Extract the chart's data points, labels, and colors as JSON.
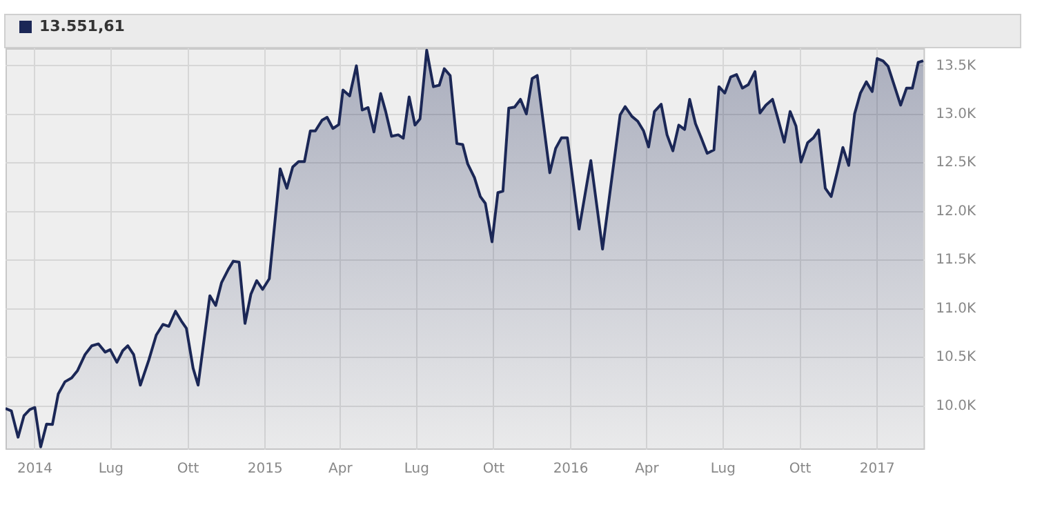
{
  "chart_data": {
    "type": "area",
    "legend": "top left",
    "grid": true,
    "marker": "none",
    "line_style": "solid",
    "xlim": [
      "2014-02-25",
      "2017-02-27"
    ],
    "ylim": [
      9550,
      13680
    ],
    "xticks": [
      {
        "value": "2014-04-01",
        "label": "2014"
      },
      {
        "value": "2014-07-01",
        "label": "Lug"
      },
      {
        "value": "2014-10-01",
        "label": "Ott"
      },
      {
        "value": "2015-01-01",
        "label": "2015"
      },
      {
        "value": "2015-04-01",
        "label": "Apr"
      },
      {
        "value": "2015-07-01",
        "label": "Lug"
      },
      {
        "value": "2015-10-01",
        "label": "Ott"
      },
      {
        "value": "2016-01-01",
        "label": "2016"
      },
      {
        "value": "2016-04-01",
        "label": "Apr"
      },
      {
        "value": "2016-07-01",
        "label": "Lug"
      },
      {
        "value": "2016-10-01",
        "label": "Ott"
      },
      {
        "value": "2017-01-01",
        "label": "2017"
      }
    ],
    "yticks": [
      {
        "value": 10000,
        "label": "10.0K"
      },
      {
        "value": 10500,
        "label": "10.5K"
      },
      {
        "value": 11000,
        "label": "11.0K"
      },
      {
        "value": 11500,
        "label": "11.5K"
      },
      {
        "value": 12000,
        "label": "12.0K"
      },
      {
        "value": 12500,
        "label": "12.5K"
      },
      {
        "value": 13000,
        "label": "13.0K"
      },
      {
        "value": 13500,
        "label": "13.5K"
      }
    ],
    "series": [
      {
        "name": "13.551,61",
        "color": "#1b2756",
        "x": [
          "2014-02-25",
          "2014-03-04",
          "2014-03-12",
          "2014-03-19",
          "2014-03-26",
          "2014-04-01",
          "2014-04-08",
          "2014-04-15",
          "2014-04-22",
          "2014-04-29",
          "2014-05-07",
          "2014-05-15",
          "2014-05-22",
          "2014-05-31",
          "2014-06-08",
          "2014-06-16",
          "2014-06-24",
          "2014-06-30",
          "2014-07-08",
          "2014-07-15",
          "2014-07-21",
          "2014-07-28",
          "2014-08-05",
          "2014-08-15",
          "2014-08-24",
          "2014-09-01",
          "2014-09-08",
          "2014-09-16",
          "2014-09-23",
          "2014-09-29",
          "2014-10-07",
          "2014-10-13",
          "2014-10-27",
          "2014-11-03",
          "2014-11-10",
          "2014-11-18",
          "2014-11-24",
          "2014-12-01",
          "2014-12-08",
          "2014-12-15",
          "2014-12-22",
          "2014-12-29",
          "2015-01-06",
          "2015-01-19",
          "2015-01-27",
          "2015-02-03",
          "2015-02-10",
          "2015-02-17",
          "2015-02-24",
          "2015-03-02",
          "2015-03-10",
          "2015-03-16",
          "2015-03-23",
          "2015-03-30",
          "2015-04-04",
          "2015-04-12",
          "2015-04-20",
          "2015-04-27",
          "2015-05-04",
          "2015-05-11",
          "2015-05-19",
          "2015-05-25",
          "2015-06-01",
          "2015-06-09",
          "2015-06-15",
          "2015-06-22",
          "2015-06-29",
          "2015-07-05",
          "2015-07-13",
          "2015-07-21",
          "2015-07-28",
          "2015-08-03",
          "2015-08-10",
          "2015-08-18",
          "2015-08-25",
          "2015-08-31",
          "2015-09-08",
          "2015-09-15",
          "2015-09-21",
          "2015-09-29",
          "2015-10-06",
          "2015-10-12",
          "2015-10-19",
          "2015-10-26",
          "2015-11-02",
          "2015-11-09",
          "2015-11-16",
          "2015-11-22",
          "2015-12-07",
          "2015-12-14",
          "2015-12-21",
          "2015-12-28",
          "2016-01-11",
          "2016-01-25",
          "2016-02-08",
          "2016-02-29",
          "2016-03-06",
          "2016-03-14",
          "2016-03-21",
          "2016-03-28",
          "2016-04-03",
          "2016-04-10",
          "2016-04-18",
          "2016-04-25",
          "2016-05-02",
          "2016-05-09",
          "2016-05-16",
          "2016-05-22",
          "2016-05-29",
          "2016-06-05",
          "2016-06-12",
          "2016-06-20",
          "2016-06-26",
          "2016-07-03",
          "2016-07-10",
          "2016-07-17",
          "2016-07-24",
          "2016-07-31",
          "2016-08-08",
          "2016-08-14",
          "2016-08-21",
          "2016-08-29",
          "2016-09-04",
          "2016-09-12",
          "2016-09-19",
          "2016-09-26",
          "2016-10-02",
          "2016-10-10",
          "2016-10-17",
          "2016-10-23",
          "2016-10-31",
          "2016-11-07",
          "2016-11-14",
          "2016-11-21",
          "2016-11-28",
          "2016-12-05",
          "2016-12-12",
          "2016-12-19",
          "2016-12-26",
          "2017-01-01",
          "2017-01-08",
          "2017-01-14",
          "2017-01-29",
          "2017-02-05",
          "2017-02-12",
          "2017-02-19",
          "2017-02-25"
        ],
        "values": [
          9975,
          9950,
          9680,
          9900,
          9965,
          9985,
          9580,
          9815,
          9810,
          10125,
          10250,
          10290,
          10365,
          10530,
          10620,
          10640,
          10555,
          10580,
          10450,
          10570,
          10620,
          10530,
          10215,
          10470,
          10730,
          10840,
          10820,
          10975,
          10875,
          10800,
          10390,
          10215,
          11135,
          11035,
          11270,
          11405,
          11490,
          11480,
          10850,
          11150,
          11290,
          11200,
          11310,
          12440,
          12240,
          12460,
          12515,
          12515,
          12830,
          12830,
          12940,
          12970,
          12855,
          12895,
          13250,
          13190,
          13500,
          13045,
          13070,
          12820,
          13215,
          13030,
          12775,
          12790,
          12755,
          13180,
          12890,
          12955,
          13660,
          13285,
          13300,
          13470,
          13400,
          12700,
          12690,
          12490,
          12350,
          12155,
          12085,
          11690,
          12195,
          12210,
          13065,
          13075,
          13155,
          13005,
          13370,
          13400,
          12400,
          12650,
          12760,
          12760,
          11820,
          12525,
          11615,
          12995,
          13080,
          12980,
          12930,
          12830,
          12665,
          13030,
          13105,
          12790,
          12625,
          12890,
          12845,
          13155,
          12905,
          12755,
          12600,
          12635,
          13285,
          13220,
          13385,
          13410,
          13270,
          13305,
          13440,
          13015,
          13095,
          13155,
          12970,
          12715,
          13030,
          12880,
          12510,
          12710,
          12760,
          12840,
          12240,
          12155,
          12400,
          12660,
          12475,
          13005,
          13220,
          13335,
          13235,
          13575,
          13550,
          13495,
          13095,
          13270,
          13270,
          13535,
          13552
        ]
      }
    ]
  }
}
